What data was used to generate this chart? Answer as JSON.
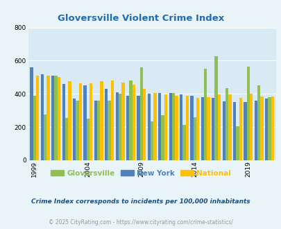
{
  "title": "Gloversville Violent Crime Index",
  "years": [
    1999,
    2000,
    2001,
    2002,
    2003,
    2004,
    2005,
    2006,
    2007,
    2008,
    2009,
    2010,
    2011,
    2012,
    2013,
    2014,
    2015,
    2016,
    2017,
    2018,
    2019,
    2020,
    2021
  ],
  "gloversville": [
    390,
    275,
    510,
    255,
    360,
    250,
    360,
    360,
    400,
    480,
    560,
    235,
    270,
    405,
    215,
    260,
    550,
    625,
    435,
    205,
    565,
    450,
    380
  ],
  "new_york": [
    560,
    520,
    510,
    460,
    370,
    450,
    360,
    430,
    410,
    390,
    390,
    400,
    405,
    405,
    395,
    390,
    380,
    375,
    355,
    350,
    350,
    360,
    370
  ],
  "national": [
    510,
    510,
    500,
    475,
    465,
    465,
    475,
    480,
    470,
    455,
    430,
    405,
    395,
    390,
    390,
    375,
    380,
    395,
    395,
    375,
    400,
    385,
    385
  ],
  "gloversville_color": "#92c050",
  "new_york_color": "#4f81bd",
  "national_color": "#ffc000",
  "background_color": "#e8f4f8",
  "plot_bg_color": "#daeaf4",
  "ylim": [
    0,
    800
  ],
  "yticks": [
    0,
    200,
    400,
    600,
    800
  ],
  "xlabel_ticks": [
    1999,
    2004,
    2009,
    2014,
    2019
  ],
  "legend_labels": [
    "Gloversville",
    "New York",
    "National"
  ],
  "footnote1": "Crime Index corresponds to incidents per 100,000 inhabitants",
  "footnote2": "© 2025 CityRating.com - https://www.cityrating.com/crime-statistics/",
  "title_color": "#1f6db5",
  "footnote1_color": "#1f4e79",
  "footnote2_color": "#999999",
  "bar_width": 0.28
}
